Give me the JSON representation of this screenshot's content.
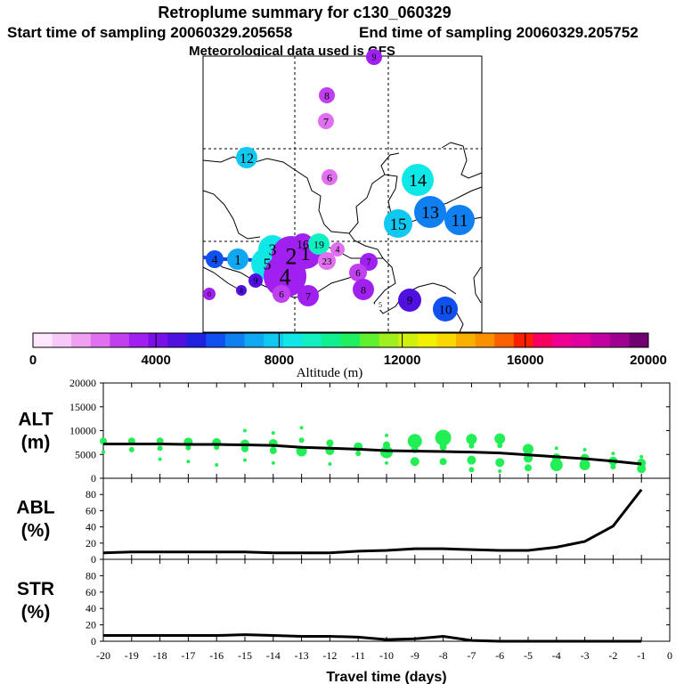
{
  "header": {
    "title": "Retroplume summary for c130_060329",
    "start": "Start time of sampling 20060329.205658",
    "end": "End time of sampling 20060329.205752",
    "met": "Meteorological data used is GFS"
  },
  "colorbar": {
    "label": "Altitude (m)",
    "ticks": [
      "0",
      "4000",
      "8000",
      "12000",
      "16000",
      "20000"
    ],
    "tick_values": [
      0,
      4000,
      8000,
      12000,
      16000,
      20000
    ],
    "colors": [
      "#ffe6ff",
      "#f8c8f8",
      "#f0a0f0",
      "#e070f0",
      "#c040f0",
      "#a020f0",
      "#7a10e8",
      "#5010e0",
      "#2020e0",
      "#1050f0",
      "#1080f0",
      "#10a8f0",
      "#10c8f0",
      "#10e8e8",
      "#10f0c0",
      "#10f090",
      "#20f060",
      "#60f030",
      "#a0f020",
      "#d0f010",
      "#f0f000",
      "#f8d800",
      "#f8b000",
      "#f89000",
      "#f86000",
      "#f82000",
      "#f80060",
      "#f00090",
      "#e000a0",
      "#c000a0",
      "#a00090",
      "#700070"
    ]
  },
  "map_labels": [
    {
      "t": "9",
      "c": "#a020f0",
      "s": 10
    },
    {
      "t": "8",
      "c": "#c040f0",
      "s": 12
    },
    {
      "t": "7",
      "c": "#e070f0",
      "s": 12
    },
    {
      "t": "12",
      "c": "#10c8f0",
      "s": 16
    },
    {
      "t": "6",
      "c": "#e070f0",
      "s": 12
    },
    {
      "t": "14",
      "c": "#10e8e8",
      "s": 20
    },
    {
      "t": "15",
      "c": "#10c8f0",
      "s": 19
    },
    {
      "t": "13",
      "c": "#1080f0",
      "s": 20
    },
    {
      "t": "11",
      "c": "#1080f0",
      "s": 20
    },
    {
      "t": "4",
      "c": "#1050f0",
      "s": 14
    },
    {
      "t": "1",
      "c": "#10a8f0",
      "s": 16
    },
    {
      "t": "3",
      "c": "#10e8e8",
      "s": 18
    },
    {
      "t": "5",
      "c": "#10e8e8",
      "s": 18
    },
    {
      "t": "2",
      "c": "#a020f0",
      "s": 26
    },
    {
      "t": "1",
      "c": "#a020f0",
      "s": 22
    },
    {
      "t": "16",
      "c": "#a020f0",
      "s": 14
    },
    {
      "t": "19",
      "c": "#10f0c0",
      "s": 12
    },
    {
      "t": "23",
      "c": "#e070f0",
      "s": 11
    },
    {
      "t": "4",
      "c": "#e070f0",
      "s": 10
    },
    {
      "t": "4",
      "c": "#a020f0",
      "s": 26
    },
    {
      "t": "7",
      "c": "#a020f0",
      "s": 10
    },
    {
      "t": "6",
      "c": "#c040f0",
      "s": 11
    },
    {
      "t": "8",
      "c": "#a020f0",
      "s": 12
    },
    {
      "t": "9",
      "c": "#5010e0",
      "s": 10
    },
    {
      "t": "8",
      "c": "#5010e0",
      "s": 8
    },
    {
      "t": "0",
      "c": "#a020f0",
      "s": 8
    },
    {
      "t": "6",
      "c": "#c040f0",
      "s": 11
    },
    {
      "t": "7",
      "c": "#a020f0",
      "s": 12
    },
    {
      "t": "5",
      "c": "#ffffff",
      "s": 8
    },
    {
      "t": "9",
      "c": "#5010e0",
      "s": 13
    },
    {
      "t": "10",
      "c": "#1050f0",
      "s": 15
    }
  ],
  "chart_data": [
    {
      "type": "scatter",
      "title": "ALT",
      "ylabel": "ALT (m)",
      "ylabel_lines": [
        "ALT",
        "(m)"
      ],
      "ylim": [
        0,
        20000
      ],
      "yticks": [
        "20000",
        "15000",
        "10000",
        "5000",
        "0"
      ],
      "ytick_values": [
        20000,
        15000,
        10000,
        5000,
        0
      ],
      "mean_line": {
        "x": [
          -20,
          -19,
          -18,
          -17,
          -16,
          -15,
          -14,
          -13,
          -12,
          -11,
          -10,
          -9,
          -8,
          -7,
          -6,
          -5,
          -4,
          -3,
          -2,
          -1
        ],
        "y": [
          7200,
          7200,
          7200,
          7100,
          7100,
          7000,
          6900,
          6500,
          6300,
          6100,
          5800,
          5700,
          5600,
          5500,
          5300,
          4900,
          4500,
          4100,
          3600,
          3000
        ]
      },
      "points": [
        {
          "x": -20,
          "y": 7800,
          "r": 4
        },
        {
          "x": -20,
          "y": 5500,
          "r": 2
        },
        {
          "x": -19,
          "y": 7800,
          "r": 4
        },
        {
          "x": -19,
          "y": 6000,
          "r": 3
        },
        {
          "x": -18,
          "y": 7800,
          "r": 4
        },
        {
          "x": -18,
          "y": 6300,
          "r": 3
        },
        {
          "x": -18,
          "y": 4000,
          "r": 2
        },
        {
          "x": -17,
          "y": 7600,
          "r": 5
        },
        {
          "x": -17,
          "y": 6400,
          "r": 3
        },
        {
          "x": -17,
          "y": 3500,
          "r": 2
        },
        {
          "x": -16,
          "y": 7500,
          "r": 5
        },
        {
          "x": -16,
          "y": 6500,
          "r": 3
        },
        {
          "x": -16,
          "y": 2800,
          "r": 2
        },
        {
          "x": -15,
          "y": 10000,
          "r": 2
        },
        {
          "x": -15,
          "y": 7200,
          "r": 5
        },
        {
          "x": -15,
          "y": 6200,
          "r": 4
        },
        {
          "x": -15,
          "y": 3800,
          "r": 2
        },
        {
          "x": -14,
          "y": 9500,
          "r": 2
        },
        {
          "x": -14,
          "y": 7300,
          "r": 5
        },
        {
          "x": -14,
          "y": 5800,
          "r": 4
        },
        {
          "x": -14,
          "y": 3200,
          "r": 2
        },
        {
          "x": -13,
          "y": 10600,
          "r": 2
        },
        {
          "x": -13,
          "y": 8000,
          "r": 3
        },
        {
          "x": -13,
          "y": 5700,
          "r": 6
        },
        {
          "x": -12,
          "y": 7400,
          "r": 4
        },
        {
          "x": -12,
          "y": 5800,
          "r": 5
        },
        {
          "x": -12,
          "y": 3000,
          "r": 2
        },
        {
          "x": -11,
          "y": 6600,
          "r": 5
        },
        {
          "x": -11,
          "y": 5200,
          "r": 3
        },
        {
          "x": -10,
          "y": 9000,
          "r": 2
        },
        {
          "x": -10,
          "y": 7000,
          "r": 4
        },
        {
          "x": -10,
          "y": 5500,
          "r": 7
        },
        {
          "x": -10,
          "y": 3200,
          "r": 2
        },
        {
          "x": -9,
          "y": 7800,
          "r": 8
        },
        {
          "x": -9,
          "y": 6000,
          "r": 4
        },
        {
          "x": -9,
          "y": 3500,
          "r": 5
        },
        {
          "x": -8,
          "y": 8500,
          "r": 9
        },
        {
          "x": -8,
          "y": 6600,
          "r": 4
        },
        {
          "x": -8,
          "y": 3500,
          "r": 4
        },
        {
          "x": -7,
          "y": 8200,
          "r": 6
        },
        {
          "x": -7,
          "y": 6800,
          "r": 3
        },
        {
          "x": -7,
          "y": 3800,
          "r": 5
        },
        {
          "x": -7,
          "y": 1800,
          "r": 3
        },
        {
          "x": -6,
          "y": 8300,
          "r": 6
        },
        {
          "x": -6,
          "y": 6900,
          "r": 3
        },
        {
          "x": -6,
          "y": 3300,
          "r": 5
        },
        {
          "x": -6,
          "y": 1500,
          "r": 2
        },
        {
          "x": -5,
          "y": 6100,
          "r": 6
        },
        {
          "x": -5,
          "y": 4200,
          "r": 5
        },
        {
          "x": -5,
          "y": 2200,
          "r": 4
        },
        {
          "x": -4,
          "y": 6300,
          "r": 2
        },
        {
          "x": -4,
          "y": 4300,
          "r": 5
        },
        {
          "x": -4,
          "y": 2800,
          "r": 7
        },
        {
          "x": -3,
          "y": 6000,
          "r": 2
        },
        {
          "x": -3,
          "y": 4200,
          "r": 5
        },
        {
          "x": -3,
          "y": 2800,
          "r": 6
        },
        {
          "x": -2,
          "y": 5200,
          "r": 2
        },
        {
          "x": -2,
          "y": 3600,
          "r": 5
        },
        {
          "x": -2,
          "y": 2400,
          "r": 3
        },
        {
          "x": -1,
          "y": 4500,
          "r": 2
        },
        {
          "x": -1,
          "y": 3200,
          "r": 5
        },
        {
          "x": -1,
          "y": 2000,
          "r": 5
        }
      ]
    },
    {
      "type": "line",
      "title": "ABL",
      "ylabel": "ABL (%)",
      "ylabel_lines": [
        "ABL",
        "(%)"
      ],
      "ylim": [
        0,
        100
      ],
      "yticks": [
        "80",
        "60",
        "40",
        "20",
        "0"
      ],
      "ytick_values": [
        80,
        60,
        40,
        20,
        0
      ],
      "x": [
        -20,
        -19,
        -18,
        -17,
        -16,
        -15,
        -14,
        -13,
        -12,
        -11,
        -10,
        -9,
        -8,
        -7,
        -6,
        -5,
        -4,
        -3,
        -2,
        -1
      ],
      "y": [
        8,
        9,
        9,
        9,
        9,
        9,
        8,
        8,
        8,
        10,
        11,
        13,
        13,
        12,
        11,
        11,
        15,
        22,
        41,
        86
      ]
    },
    {
      "type": "line",
      "title": "STR",
      "ylabel": "STR (%)",
      "ylabel_lines": [
        "STR",
        "(%)"
      ],
      "ylim": [
        0,
        100
      ],
      "yticks": [
        "80",
        "60",
        "40",
        "20",
        "0"
      ],
      "ytick_values": [
        80,
        60,
        40,
        20,
        0
      ],
      "x": [
        -20,
        -19,
        -18,
        -17,
        -16,
        -15,
        -14,
        -13,
        -12,
        -11,
        -10,
        -9,
        -8,
        -7,
        -6,
        -5,
        -4,
        -3,
        -2,
        -1
      ],
      "y": [
        7,
        7,
        7,
        7,
        7,
        8,
        7,
        6,
        6,
        5,
        2,
        3,
        6,
        1,
        0,
        0,
        0,
        0,
        0,
        0
      ],
      "xlabel": "Travel time (days)",
      "xticks": [
        "-20",
        "-19",
        "-18",
        "-17",
        "-16",
        "-15",
        "-14",
        "-13",
        "-12",
        "-11",
        "-10",
        "-9",
        "-8",
        "-7",
        "-6",
        "-5",
        "-4",
        "-3",
        "-2",
        "-1",
        "0"
      ],
      "xtick_values": [
        -20,
        -19,
        -18,
        -17,
        -16,
        -15,
        -14,
        -13,
        -12,
        -11,
        -10,
        -9,
        -8,
        -7,
        -6,
        -5,
        -4,
        -3,
        -2,
        -1,
        0
      ],
      "xlim": [
        -20,
        0
      ]
    }
  ],
  "colors": {
    "mean_line": "#000000",
    "scatter": "#22ee55",
    "track": "#2040e0"
  }
}
